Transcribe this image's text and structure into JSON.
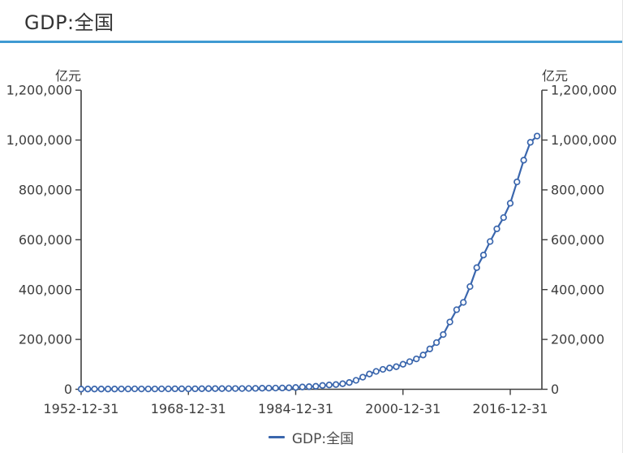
{
  "header": {
    "title": "GDP:全国"
  },
  "theme": {
    "accent": "#3f9ad2",
    "series_color": "#3a66ad",
    "axis_color": "#3f3f3f",
    "label_color": "#3d3d3d",
    "legend_text_color": "#4a4a4a"
  },
  "legend": {
    "label": "GDP:全国"
  },
  "chart_data": {
    "type": "line",
    "title": "GDP:全国",
    "unit_left": "亿元",
    "unit_right": "亿元",
    "grid": false,
    "legend_position": "bottom-center",
    "ylim": [
      0,
      1200000
    ],
    "y_tick_values": [
      0,
      200000,
      400000,
      600000,
      800000,
      1000000,
      1200000
    ],
    "y_tick_labels": [
      "0",
      "200,000",
      "400,000",
      "600,000",
      "800,000",
      "1,000,000",
      "1,200,000"
    ],
    "x_tick_years": [
      1952,
      1968,
      1984,
      2000,
      2016
    ],
    "x_tick_labels": [
      "1952-12-31",
      "1968-12-31",
      "1984-12-31",
      "2000-12-31",
      "2016-12-31"
    ],
    "x_start_year": 1952,
    "x_end_year": 2020,
    "series": [
      {
        "name": "GDP:全国",
        "color": "#3a66ad",
        "marker": "open-circle",
        "values": [
          679,
          824,
          860,
          911,
          1031,
          1071,
          1312,
          1448,
          1470,
          1232,
          1162,
          1248,
          1470,
          1734,
          1889,
          1794,
          1744,
          1963,
          2280,
          2457,
          2552,
          2757,
          2828,
          3040,
          2989,
          3250,
          3679,
          4101,
          4588,
          4936,
          5373,
          6021,
          7279,
          9099,
          10376,
          12175,
          15180,
          17180,
          18873,
          22006,
          27195,
          35673,
          48638,
          61340,
          71814,
          79715,
          85196,
          90564,
          100280,
          110863,
          121717,
          137422,
          161840,
          187319,
          219439,
          270092,
          319245,
          348518,
          412119,
          487940,
          538580,
          592963,
          643563,
          688858,
          746395,
          832036,
          919281,
          990865,
          1015986
        ]
      }
    ]
  }
}
